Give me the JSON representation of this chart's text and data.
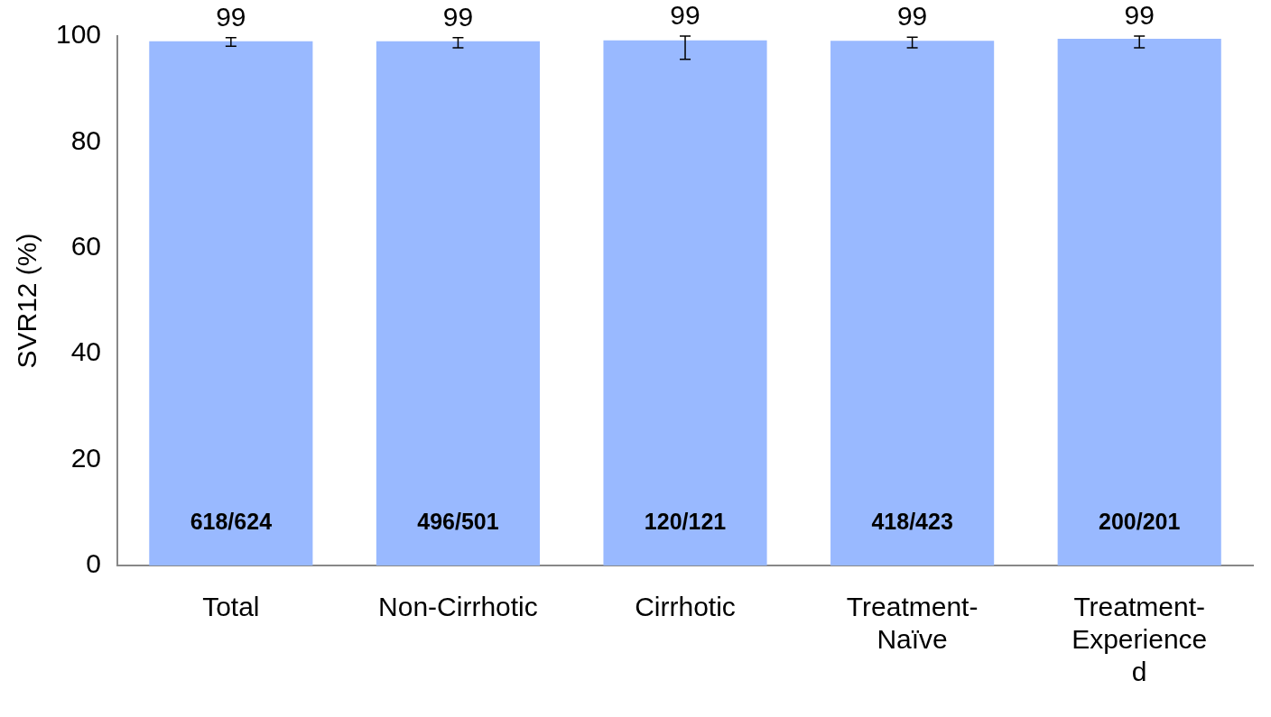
{
  "chart_data": {
    "type": "bar",
    "ylabel": "SVR12 (%)",
    "categories": [
      "Total",
      "Non-Cirrhotic",
      "Cirrhotic",
      "Treatment-\nNaïve",
      "Treatment-\nExperience\nd"
    ],
    "values": [
      99.0,
      99.0,
      99.2,
      99.1,
      99.5
    ],
    "value_labels": [
      "99",
      "99",
      "99",
      "99",
      "99"
    ],
    "errors": [
      [
        98.1,
        99.7
      ],
      [
        97.8,
        99.7
      ],
      [
        95.6,
        100
      ],
      [
        97.8,
        99.8
      ],
      [
        97.8,
        100
      ]
    ],
    "color": "#99b9ff",
    "ylim": [
      0,
      100
    ],
    "yticks": [
      0,
      20,
      40,
      60,
      80,
      100
    ],
    "grid": false,
    "legend": false,
    "annotations": [
      "618/624",
      "496/501",
      "120/121",
      "418/423",
      "200/201"
    ]
  }
}
